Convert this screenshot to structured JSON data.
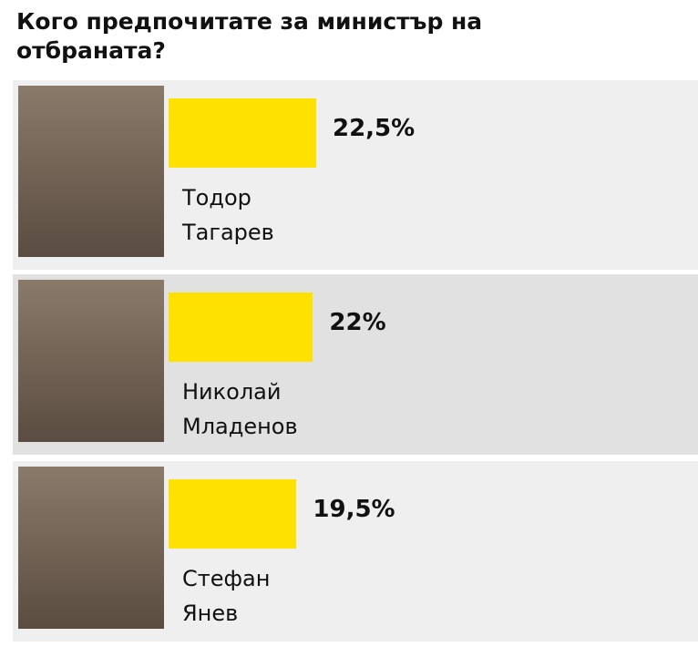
{
  "chart_data": {
    "type": "bar",
    "orientation": "horizontal",
    "title": "Кого предпочитате за министър на отбраната?",
    "categories": [
      "Тодор Тагарев",
      "Николай Младенов",
      "Стефан Янев"
    ],
    "values": [
      22.5,
      22,
      19.5
    ],
    "value_labels": [
      "22,5%",
      "22%",
      "19,5%"
    ],
    "color": "#ffe100"
  }
}
